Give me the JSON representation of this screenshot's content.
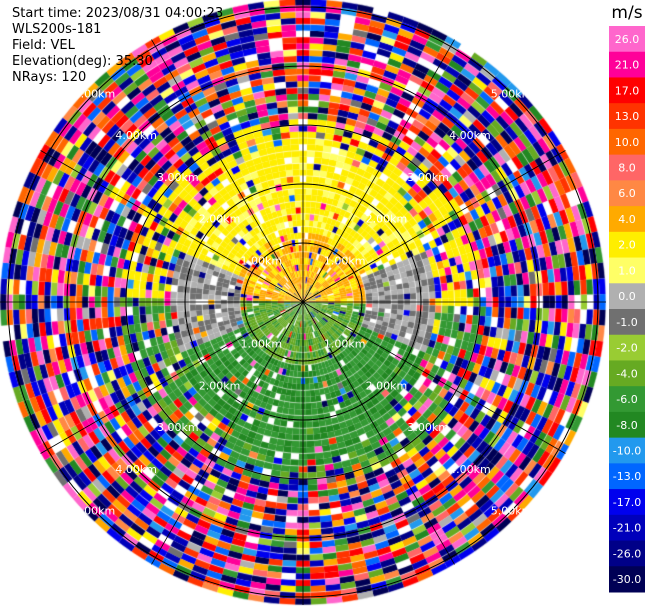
{
  "header": {
    "start_time": "Start time: 2023/08/31 04:00:23",
    "instrument": "WLS200s-181",
    "field": "Field: VEL",
    "elevation": "Elevation(deg): 35.30",
    "nrays": "NRays: 120"
  },
  "chart_data": {
    "type": "ppi-polar",
    "field": "VEL",
    "unit": "m/s",
    "range_rings_km": [
      "1.00km",
      "2.00km",
      "3.00km",
      "4.00km",
      "5.00km"
    ],
    "colorbar": {
      "unit_label": "m/s",
      "ticks": [
        "26.0",
        "21.0",
        "17.0",
        "13.0",
        "10.0",
        "8.0",
        "6.0",
        "4.0",
        "2.0",
        "1.0",
        "0.0",
        "-1.0",
        "-2.0",
        "-4.0",
        "-6.0",
        "-8.0",
        "-10.0",
        "-13.0",
        "-17.0",
        "-21.0",
        "-26.0",
        "-30.0"
      ],
      "bins": [
        {
          "min": 26,
          "max": 30,
          "color": "#ff66cc"
        },
        {
          "min": 21,
          "max": 26,
          "color": "#ff0099"
        },
        {
          "min": 17,
          "max": 21,
          "color": "#ff0000"
        },
        {
          "min": 13,
          "max": 17,
          "color": "#ff3300"
        },
        {
          "min": 10,
          "max": 13,
          "color": "#ff6600"
        },
        {
          "min": 8,
          "max": 10,
          "color": "#ff6666"
        },
        {
          "min": 6,
          "max": 8,
          "color": "#ff8844"
        },
        {
          "min": 4,
          "max": 6,
          "color": "#ffaa00"
        },
        {
          "min": 2,
          "max": 4,
          "color": "#ffee00"
        },
        {
          "min": 1,
          "max": 2,
          "color": "#ffff66"
        },
        {
          "min": 0,
          "max": 1,
          "color": "#b0b0b0"
        },
        {
          "min": -1,
          "max": 0,
          "color": "#707070"
        },
        {
          "min": -2,
          "max": -1,
          "color": "#99cc33"
        },
        {
          "min": -4,
          "max": -2,
          "color": "#66aa22"
        },
        {
          "min": -6,
          "max": -4,
          "color": "#339933"
        },
        {
          "min": -8,
          "max": -6,
          "color": "#228822"
        },
        {
          "min": -10,
          "max": -8,
          "color": "#2299ee"
        },
        {
          "min": -13,
          "max": -10,
          "color": "#0066ff"
        },
        {
          "min": -17,
          "max": -13,
          "color": "#0000ee"
        },
        {
          "min": -21,
          "max": -17,
          "color": "#0000bb"
        },
        {
          "min": -26,
          "max": -21,
          "color": "#000088"
        },
        {
          "min": -30,
          "max": -26,
          "color": "#000055"
        }
      ]
    }
  }
}
